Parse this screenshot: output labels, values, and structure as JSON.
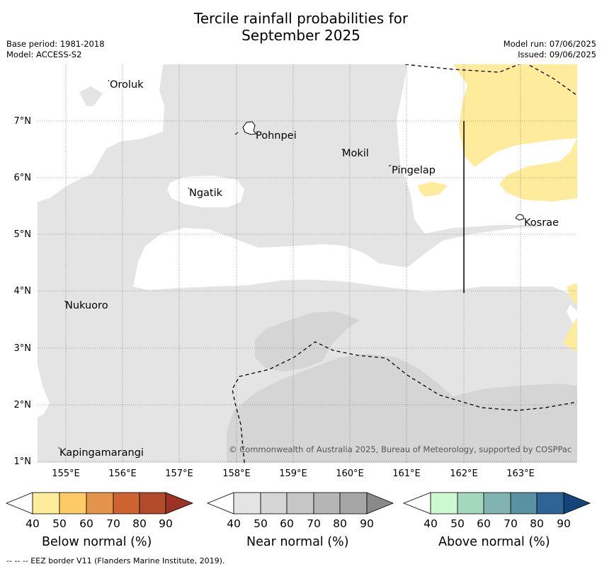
{
  "header": {
    "title_line1": "Tercile rainfall probabilities for",
    "title_line2": "September 2025",
    "base_period": "Base period: 1981-2018",
    "model": "Model: ACCESS-S2",
    "model_run": "Model run: 07/06/2025",
    "issued": "Issued: 09/06/2025"
  },
  "map": {
    "lon_ticks": [
      "155°E",
      "156°E",
      "157°E",
      "158°E",
      "159°E",
      "160°E",
      "161°E",
      "162°E",
      "163°E"
    ],
    "lat_ticks": [
      "7°N",
      "6°N",
      "5°N",
      "4°N",
      "3°N",
      "2°N",
      "1°N"
    ],
    "places": [
      "Oroluk",
      "Pohnpei",
      "Mokil",
      "Pingelap",
      "Ngatik",
      "Kosrae",
      "Nukuoro",
      "Kapingamarangi"
    ],
    "copyright": "© Commonwealth of Australia 2025, Bureau of Meteorology, supported by COSPPac",
    "colors": {
      "near_normal_40": "#e4e4e4",
      "near_normal_50": "#d5d5d5",
      "below_normal_40": "#ffeb9c",
      "land_outline": "#000000"
    }
  },
  "legends": [
    {
      "title": "Below normal (%)",
      "ticks": [
        "40",
        "50",
        "60",
        "70",
        "80",
        "90"
      ],
      "colors": [
        "#ffeb9c",
        "#fdcb66",
        "#e3944a",
        "#cc6331",
        "#b24b2a",
        "#9b3224"
      ]
    },
    {
      "title": "Near normal (%)",
      "ticks": [
        "40",
        "50",
        "60",
        "70",
        "80",
        "90"
      ],
      "colors": [
        "#e4e4e4",
        "#d5d5d5",
        "#c6c6c6",
        "#b5b5b5",
        "#a5a5a5",
        "#8a8a8a"
      ]
    },
    {
      "title": "Above normal (%)",
      "ticks": [
        "40",
        "50",
        "60",
        "70",
        "80",
        "90"
      ],
      "colors": [
        "#ccf9d0",
        "#a3d8bd",
        "#81b4b0",
        "#5891a2",
        "#2f6496",
        "#13457a"
      ]
    }
  ],
  "footer": "--  --  -- EEZ border V11 (Flanders Marine Institute, 2019)."
}
